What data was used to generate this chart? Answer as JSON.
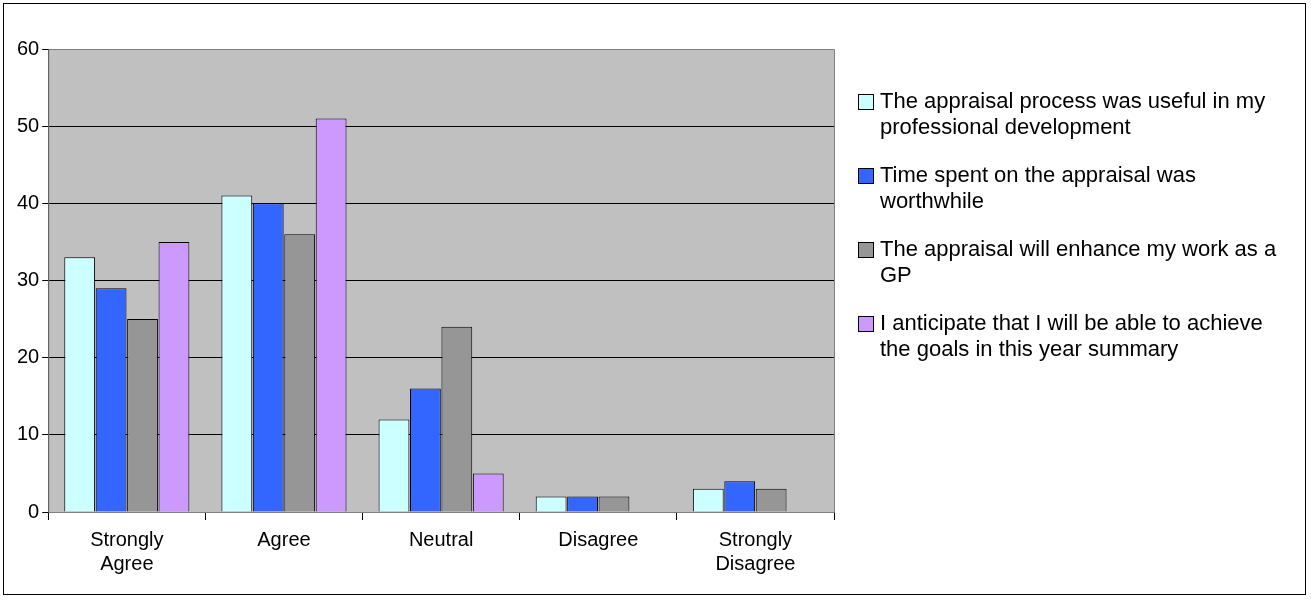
{
  "chart_data": {
    "type": "bar",
    "categories": [
      "Strongly Agree",
      "Agree",
      "Neutral",
      "Disagree",
      "Strongly Disagree"
    ],
    "series": [
      {
        "name": "The appraisal process was useful in my professional development",
        "color": "#ccffff",
        "values": [
          33,
          41,
          12,
          2,
          3
        ]
      },
      {
        "name": "Time spent on the appraisal was worthwhile",
        "color": "#3366ff",
        "values": [
          29,
          40,
          16,
          2,
          4
        ]
      },
      {
        "name": "The appraisal will enhance my work as a GP",
        "color": "#969696",
        "values": [
          25,
          36,
          24,
          2,
          3
        ]
      },
      {
        "name": "I anticipate that I will be able to achieve the goals in this year summary",
        "color": "#cc99ff",
        "values": [
          35,
          51,
          5,
          0,
          0
        ]
      }
    ],
    "ylim": [
      0,
      60
    ],
    "yticks": [
      0,
      10,
      20,
      30,
      40,
      50,
      60
    ],
    "grid": "y",
    "legend": "right"
  }
}
